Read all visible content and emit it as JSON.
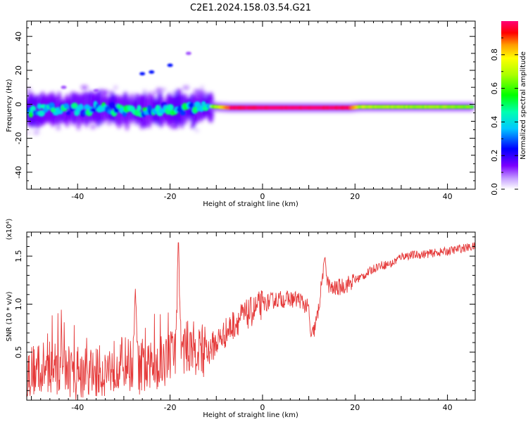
{
  "title": "C2E1.2024.158.03.54.G21",
  "chart_data": [
    {
      "type": "heatmap",
      "name": "spectrogram",
      "xlabel": "Height of straight line (km)",
      "ylabel": "Frequency (Hz)",
      "xlim": [
        -51,
        46
      ],
      "ylim": [
        -50,
        49
      ],
      "xticks": [
        -40,
        -20,
        0,
        20,
        40
      ],
      "xtick_labels": [
        "-40",
        "-20",
        "0",
        "20",
        "40"
      ],
      "yticks": [
        -40,
        -20,
        0,
        20,
        40
      ],
      "ytick_labels": [
        "-40",
        "-20",
        "0",
        "20",
        "40"
      ],
      "colorbar": {
        "label": "Normalized spectral amplitude",
        "range": [
          0,
          1
        ],
        "ticks": [
          0.0,
          0.2,
          0.4,
          0.6,
          0.8
        ],
        "tick_labels": [
          "0.0",
          "0.2",
          "0.4",
          "0.6",
          "0.8"
        ],
        "colormap": "rainbow-white-to-magenta"
      },
      "ridge": [
        {
          "x": -51,
          "freq": -4.0,
          "amp": 0.45
        },
        {
          "x": -45,
          "freq": -3.0,
          "amp": 0.5
        },
        {
          "x": -40,
          "freq": -3.0,
          "amp": 0.45
        },
        {
          "x": -35,
          "freq": -2.0,
          "amp": 0.5
        },
        {
          "x": -30,
          "freq": -3.5,
          "amp": 0.45
        },
        {
          "x": -25,
          "freq": -3.5,
          "amp": 0.5
        },
        {
          "x": -20,
          "freq": -3.0,
          "amp": 0.45
        },
        {
          "x": -15,
          "freq": -3.0,
          "amp": 0.5
        },
        {
          "x": -12,
          "freq": -1.0,
          "amp": 0.55
        },
        {
          "x": -10,
          "freq": -1.5,
          "amp": 0.6
        },
        {
          "x": -7,
          "freq": -2.0,
          "amp": 0.95
        },
        {
          "x": 0,
          "freq": -2.0,
          "amp": 1.0
        },
        {
          "x": 10,
          "freq": -2.0,
          "amp": 1.0
        },
        {
          "x": 19,
          "freq": -2.0,
          "amp": 0.95
        },
        {
          "x": 21,
          "freq": -1.5,
          "amp": 0.65
        },
        {
          "x": 30,
          "freq": -1.5,
          "amp": 0.6
        },
        {
          "x": 40,
          "freq": -1.5,
          "amp": 0.6
        },
        {
          "x": 45,
          "freq": -1.5,
          "amp": 0.55
        }
      ],
      "outliers": [
        {
          "x": -26,
          "freq": 18,
          "amp": 0.25
        },
        {
          "x": -24,
          "freq": 19,
          "amp": 0.25
        },
        {
          "x": -20,
          "freq": 23,
          "amp": 0.25
        },
        {
          "x": -16,
          "freq": 30,
          "amp": 0.1
        },
        {
          "x": -43,
          "freq": 10,
          "amp": 0.1
        },
        {
          "x": -36,
          "freq": 8,
          "amp": 0.1
        }
      ]
    },
    {
      "type": "line",
      "name": "snr",
      "xlabel": "Height of straight line (km)",
      "ylabel": "SNR (10 * v/v)",
      "y_multiplier": "(x10⁴)",
      "xlim": [
        -51,
        46
      ],
      "ylim": [
        0,
        1.75
      ],
      "xticks": [
        -40,
        -20,
        0,
        20,
        40
      ],
      "xtick_labels": [
        "-40",
        "-20",
        "0",
        "20",
        "40"
      ],
      "yticks": [
        0.5,
        1.0,
        1.5
      ],
      "ytick_labels": [
        "0.5",
        "1.0",
        "1.5"
      ],
      "color": "#e53a3a",
      "x": [
        -51,
        -45,
        -40,
        -35,
        -30,
        -25,
        -22,
        -20,
        -18,
        -17,
        -15,
        -12,
        -10,
        -7,
        -5,
        -3,
        0,
        3,
        5,
        8,
        10,
        11,
        12,
        13,
        15,
        18,
        20,
        22,
        25,
        28,
        30,
        35,
        40,
        43,
        46
      ],
      "y": [
        0.3,
        0.35,
        0.25,
        0.3,
        0.4,
        0.3,
        0.4,
        0.45,
        0.6,
        0.55,
        0.55,
        0.5,
        0.6,
        0.75,
        0.85,
        0.9,
        1.0,
        1.05,
        1.05,
        1.05,
        0.95,
        0.7,
        0.9,
        1.3,
        1.15,
        1.2,
        1.25,
        1.3,
        1.4,
        1.42,
        1.5,
        1.52,
        1.55,
        1.58,
        1.6
      ],
      "spikes": [
        {
          "x": -18.2,
          "y": 1.74
        },
        {
          "x": -27.5,
          "y": 1.18
        },
        {
          "x": 13.5,
          "y": 1.5
        },
        {
          "x": 10.5,
          "y": 0.65
        }
      ]
    }
  ]
}
